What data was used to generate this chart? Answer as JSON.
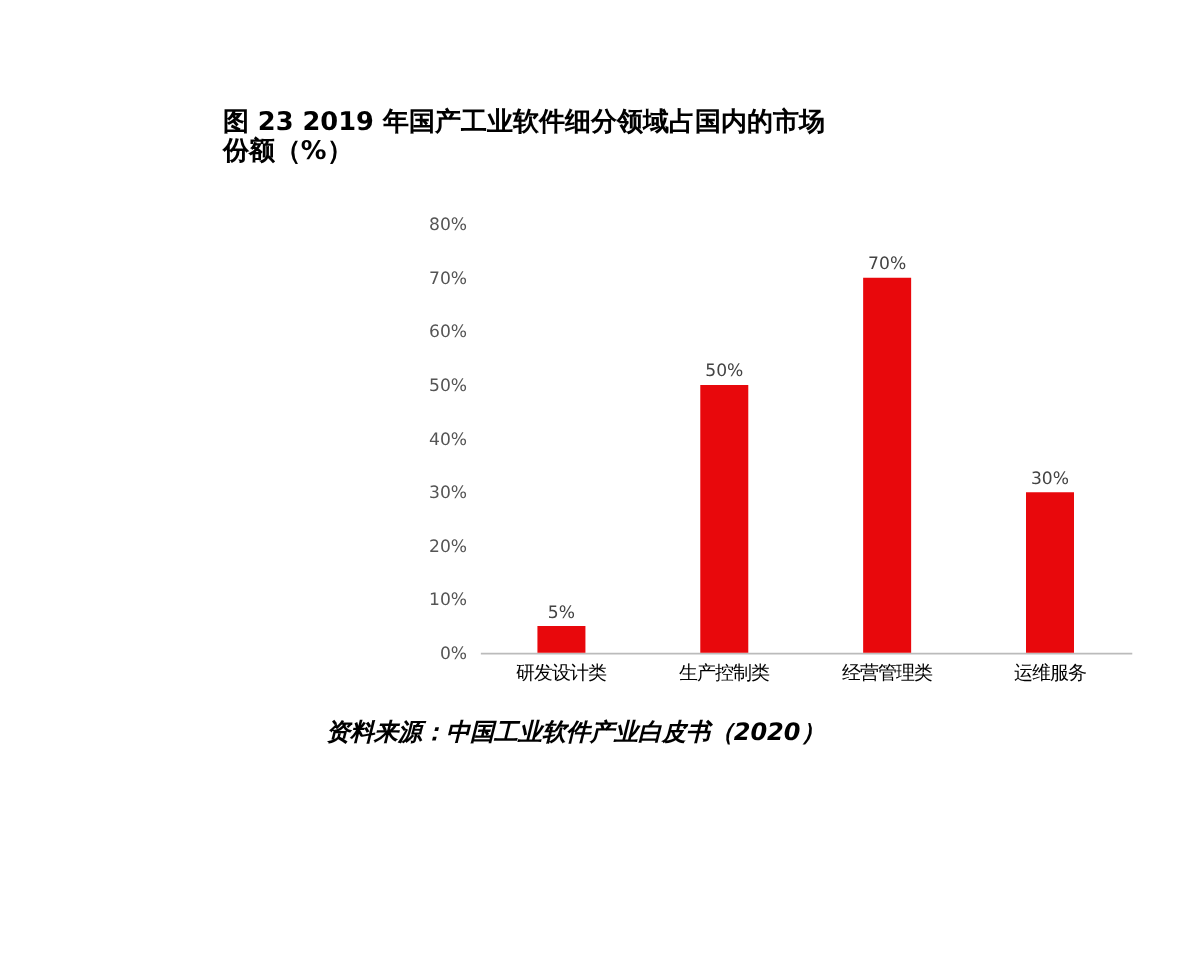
{
  "chart_data": {
    "type": "bar",
    "title": "图 23 2019 年国产工业软件细分领域占国内的市场份额（%）",
    "categories": [
      "研发设计类",
      "生产控制类",
      "经营管理类",
      "运维服务"
    ],
    "values": [
      5,
      50,
      70,
      30
    ],
    "value_labels": [
      "5%",
      "50%",
      "70%",
      "30%"
    ],
    "color": "#e8080c",
    "ylim": [
      0,
      80
    ],
    "yticks": [
      {
        "value": 0,
        "label": "0%"
      },
      {
        "value": 10,
        "label": "10%"
      },
      {
        "value": 20,
        "label": "20%"
      },
      {
        "value": 30,
        "label": "30%"
      },
      {
        "value": 40,
        "label": "40%"
      },
      {
        "value": 50,
        "label": "50%"
      },
      {
        "value": 60,
        "label": "60%"
      },
      {
        "value": 70,
        "label": "70%"
      },
      {
        "value": 80,
        "label": "80%"
      }
    ],
    "grid": false,
    "annotations": [
      "资料来源：中国工业软件产业白皮书（2020）"
    ]
  }
}
